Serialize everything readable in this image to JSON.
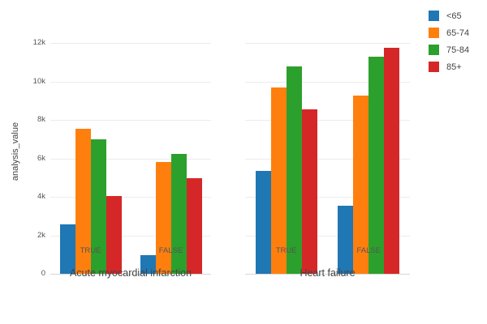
{
  "chart_data": {
    "type": "bar",
    "ylabel": "analysis_value",
    "xlabel": "",
    "ylim": [
      0,
      12550
    ],
    "grid": true,
    "yticks": [
      0,
      2000,
      4000,
      6000,
      8000,
      10000,
      12000
    ],
    "ytick_labels": [
      "0",
      "2k",
      "4k",
      "6k",
      "8k",
      "10k",
      "12k"
    ],
    "legend": {
      "position": "top-right",
      "entries": [
        "<65",
        "65-74",
        "75-84",
        "85+"
      ]
    },
    "colors": [
      "#1f77b4",
      "#ff7f0e",
      "#2ca02c",
      "#d62728"
    ],
    "facets": [
      {
        "title": "Acute myocardial infarction",
        "categories": [
          "TRUE",
          "FALSE"
        ],
        "series": [
          {
            "name": "<65",
            "values": [
              2550,
              950
            ]
          },
          {
            "name": "65-74",
            "values": [
              7550,
              5800
            ]
          },
          {
            "name": "75-84",
            "values": [
              7000,
              6250
            ]
          },
          {
            "name": "85+",
            "values": [
              4050,
              4950
            ]
          }
        ]
      },
      {
        "title": "Heart failure",
        "categories": [
          "TRUE",
          "FALSE"
        ],
        "series": [
          {
            "name": "<65",
            "values": [
              5350,
              3550
            ]
          },
          {
            "name": "65-74",
            "values": [
              9700,
              9250
            ]
          },
          {
            "name": "75-84",
            "values": [
              10800,
              11300
            ]
          },
          {
            "name": "85+",
            "values": [
              8550,
              11750
            ]
          }
        ]
      }
    ]
  }
}
